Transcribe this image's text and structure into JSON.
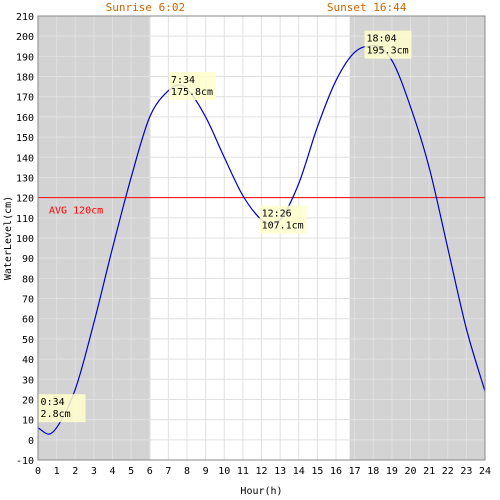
{
  "chart_data": {
    "type": "line",
    "title": "",
    "xlabel": "Hour(h)",
    "ylabel": "WaterLevel(cm)",
    "xlim": [
      0,
      24
    ],
    "ylim": [
      -10,
      210
    ],
    "x_ticks": [
      "0",
      "1",
      "2",
      "3",
      "4",
      "5",
      "6",
      "7",
      "8",
      "9",
      "10",
      "11",
      "12",
      "13",
      "14",
      "15",
      "16",
      "17",
      "18",
      "19",
      "20",
      "21",
      "22",
      "23",
      "24"
    ],
    "y_ticks": [
      "-10",
      "0",
      "10",
      "20",
      "30",
      "40",
      "50",
      "60",
      "70",
      "80",
      "90",
      "100",
      "110",
      "120",
      "130",
      "140",
      "150",
      "160",
      "170",
      "180",
      "190",
      "200",
      "210"
    ],
    "grid": true,
    "sunrise": {
      "label": "Sunrise 6:02",
      "hour": 6.033
    },
    "sunset": {
      "label": "Sunset 16:44",
      "hour": 16.733
    },
    "average": {
      "label": "AVG 120cm",
      "value": 120
    },
    "series": [
      {
        "x": [
          0,
          0.57,
          1,
          2,
          3,
          4,
          5,
          6,
          7,
          7.57,
          8,
          9,
          10,
          11,
          12,
          12.43,
          13,
          14,
          15,
          16,
          17,
          18.07,
          19,
          20,
          21,
          22,
          23,
          24
        ],
        "values": [
          6,
          2.8,
          6,
          25,
          58,
          95,
          130,
          160,
          173,
          175.8,
          174,
          160,
          140,
          121,
          109,
          107.1,
          109,
          127,
          155,
          178,
          192,
          195.3,
          188,
          165,
          135,
          95,
          55,
          24
        ]
      }
    ],
    "annotations": [
      {
        "time": "0:34",
        "value": "2.8cm",
        "hour": 0.567,
        "level": 2.8
      },
      {
        "time": "7:34",
        "value": "175.8cm",
        "hour": 7.567,
        "level": 175.8
      },
      {
        "time": "12:26",
        "value": "107.1cm",
        "hour": 12.433,
        "level": 107.1
      },
      {
        "time": "18:04",
        "value": "195.3cm",
        "hour": 18.067,
        "level": 195.3
      }
    ],
    "colors": {
      "night": "#d3d3d3",
      "grid": "#e0e0e0",
      "line": "#0000cc",
      "avg": "#ff0000",
      "sun_label": "#cc6600",
      "annotation_bg": "#ffffcc"
    }
  }
}
